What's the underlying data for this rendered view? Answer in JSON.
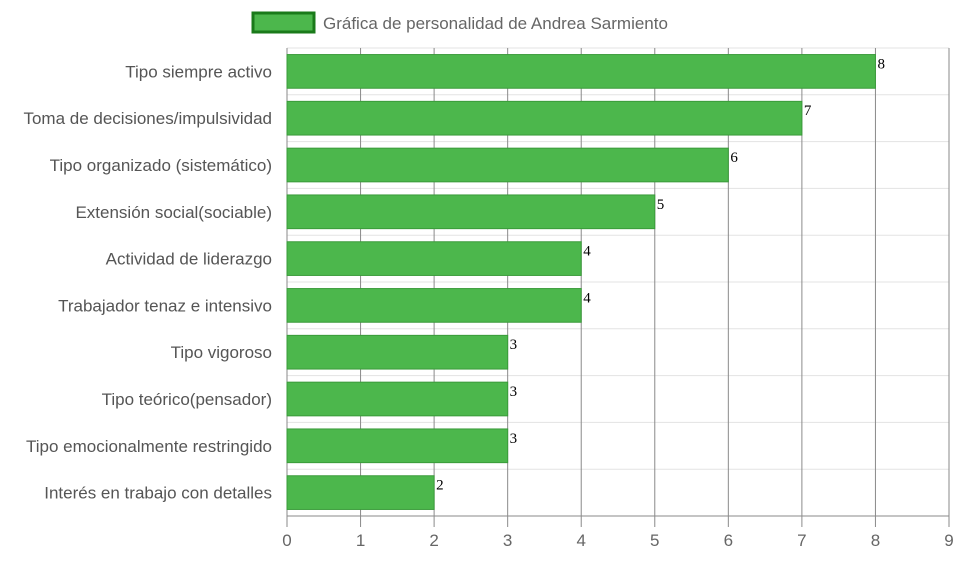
{
  "chart_data": {
    "type": "bar",
    "orientation": "horizontal",
    "legend": {
      "label": "Gráfica de personalidad de Andrea Sarmiento",
      "position": "top"
    },
    "categories": [
      "Tipo siempre activo",
      "Toma de decisiones/impulsividad",
      "Tipo organizado (sistemático)",
      "Extensión social(sociable)",
      "Actividad de liderazgo",
      "Trabajador tenaz e intensivo",
      "Tipo vigoroso",
      "Tipo teórico(pensador)",
      "Tipo emocionalmente restringido",
      "Interés en trabajo con detalles"
    ],
    "series": [
      {
        "name": "Gráfica de personalidad de Andrea Sarmiento",
        "values": [
          8,
          7,
          6,
          5,
          4,
          4,
          3,
          3,
          3,
          2
        ]
      }
    ],
    "xlim": [
      0,
      9
    ],
    "xticks": [
      "0",
      "1",
      "2",
      "3",
      "4",
      "5",
      "6",
      "7",
      "8",
      "9"
    ],
    "grid": true,
    "data_labels": true,
    "colors": {
      "bar_fill": "#4cb74c",
      "bar_border": "#3a9b3a",
      "legend_border": "#1a7a1a",
      "grid": "#e3e3e3",
      "vgrid": "#8a8a8a"
    }
  }
}
